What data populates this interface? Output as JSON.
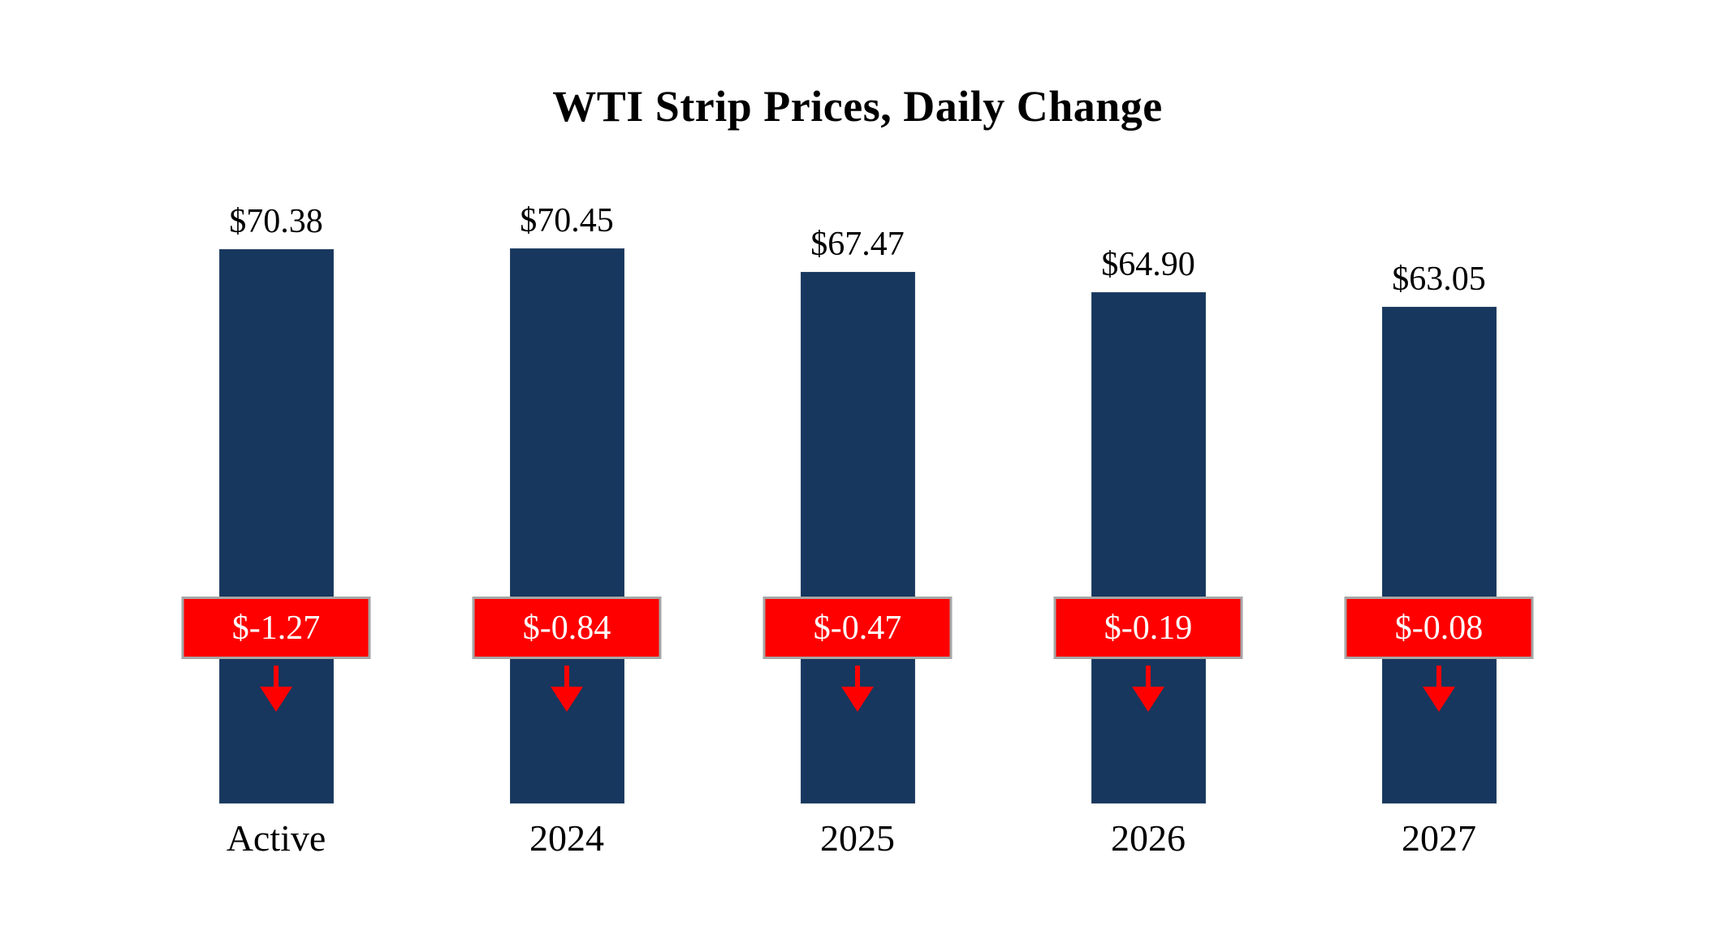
{
  "chart_data": {
    "type": "bar",
    "title": "WTI Strip Prices, Daily Change",
    "categories": [
      "Active",
      "2024",
      "2025",
      "2026",
      "2027"
    ],
    "values": [
      70.38,
      70.45,
      67.47,
      64.9,
      63.05
    ],
    "value_labels": [
      "$70.38",
      "$70.45",
      "$67.47",
      "$64.90",
      "$63.05"
    ],
    "changes": [
      -1.27,
      -0.84,
      -0.47,
      -0.19,
      -0.08
    ],
    "change_labels": [
      "$-1.27",
      "$-0.84",
      "$-0.47",
      "$-0.19",
      "$-0.08"
    ],
    "ylim": [
      0,
      75
    ],
    "grid": false,
    "legend": "none",
    "bar_color": "#17375e",
    "badge_color": "#ff0000",
    "badge_border_color": "#a6a6a6",
    "badge_text_color": "#ffffff",
    "arrow_color": "#ff0000",
    "direction_icon": "down-arrow"
  }
}
